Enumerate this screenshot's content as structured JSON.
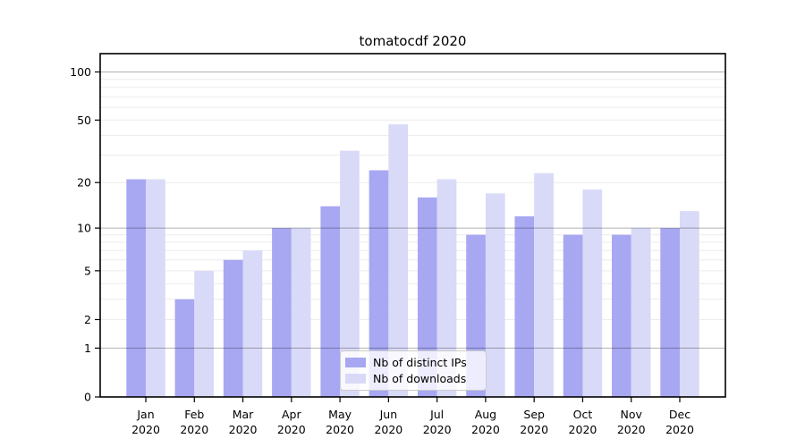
{
  "chart_data": {
    "type": "bar",
    "title": "tomatocdf 2020",
    "categories": [
      "Jan",
      "Feb",
      "Mar",
      "Apr",
      "May",
      "Jun",
      "Jul",
      "Aug",
      "Sep",
      "Oct",
      "Nov",
      "Dec"
    ],
    "category_year": "2020",
    "series": [
      {
        "name": "Nb of distinct IPs",
        "color": "#a7a7f2",
        "values": [
          21,
          3,
          6,
          10,
          14,
          24,
          16,
          9,
          12,
          9,
          9,
          10
        ]
      },
      {
        "name": "Nb of downloads",
        "color": "#d9d9f8",
        "values": [
          21,
          5,
          7,
          10,
          32,
          47,
          21,
          17,
          23,
          18,
          10,
          13
        ]
      }
    ],
    "yscale": "log1p",
    "ylim": [
      0,
      130
    ],
    "y_ticks": [
      0,
      1,
      2,
      5,
      10,
      20,
      50,
      100
    ],
    "y_major_gridlines": [
      1,
      10,
      100
    ],
    "y_minor_gridlines": [
      2,
      3,
      4,
      5,
      6,
      7,
      8,
      9,
      20,
      30,
      40,
      50,
      60,
      70,
      80,
      90
    ],
    "grid": true,
    "legend_position": "lower center"
  },
  "colors": {
    "axis": "#000000",
    "tick_text": "#000000",
    "major_grid": "rgba(0,0,0,0.30)",
    "minor_grid": "#ececec",
    "background": "#ffffff"
  }
}
